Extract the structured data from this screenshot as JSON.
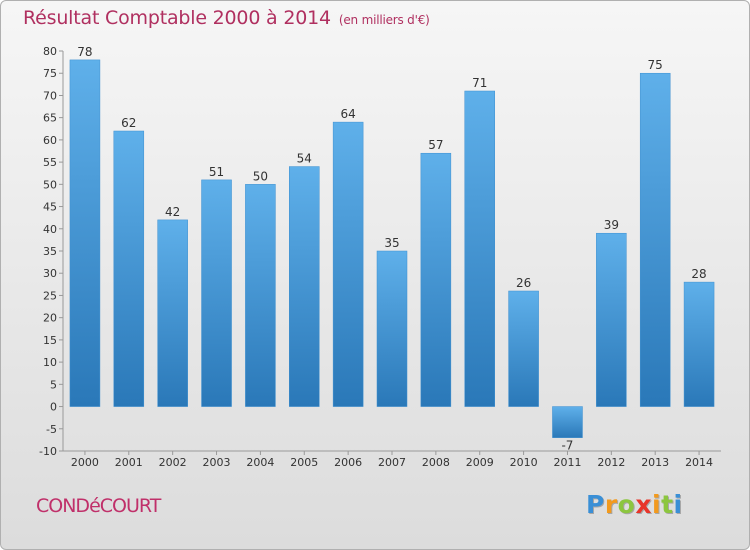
{
  "header": {
    "title": "Résultat Comptable 2000 à 2014",
    "subtitle": "(en milliers d'€)"
  },
  "footer": {
    "commune": "CONDéCOURT",
    "logo_letters": [
      "P",
      "r",
      "o",
      "x",
      "i",
      "t",
      "i"
    ],
    "logo_colors": [
      "#3a8fd6",
      "#f29a1e",
      "#8cc63f",
      "#e8352a",
      "#f29a1e",
      "#8cc63f",
      "#3a8fd6"
    ]
  },
  "colors": {
    "bar_light": "#5fb0ea",
    "bar_dark": "#2a78b8",
    "title": "#b03060"
  },
  "chart_data": {
    "type": "bar",
    "title": "Résultat Comptable 2000 à 2014",
    "xlabel": "",
    "ylabel": "",
    "categories": [
      "2000",
      "2001",
      "2002",
      "2003",
      "2004",
      "2005",
      "2006",
      "2007",
      "2008",
      "2009",
      "2010",
      "2011",
      "2012",
      "2013",
      "2014"
    ],
    "values": [
      78,
      62,
      42,
      51,
      50,
      54,
      64,
      35,
      57,
      71,
      26,
      -7,
      39,
      75,
      28
    ],
    "ylim": [
      -10,
      80
    ],
    "yticks": [
      -10,
      -5,
      0,
      5,
      10,
      15,
      20,
      25,
      30,
      35,
      40,
      45,
      50,
      55,
      60,
      65,
      70,
      75,
      80
    ],
    "grid": false
  }
}
